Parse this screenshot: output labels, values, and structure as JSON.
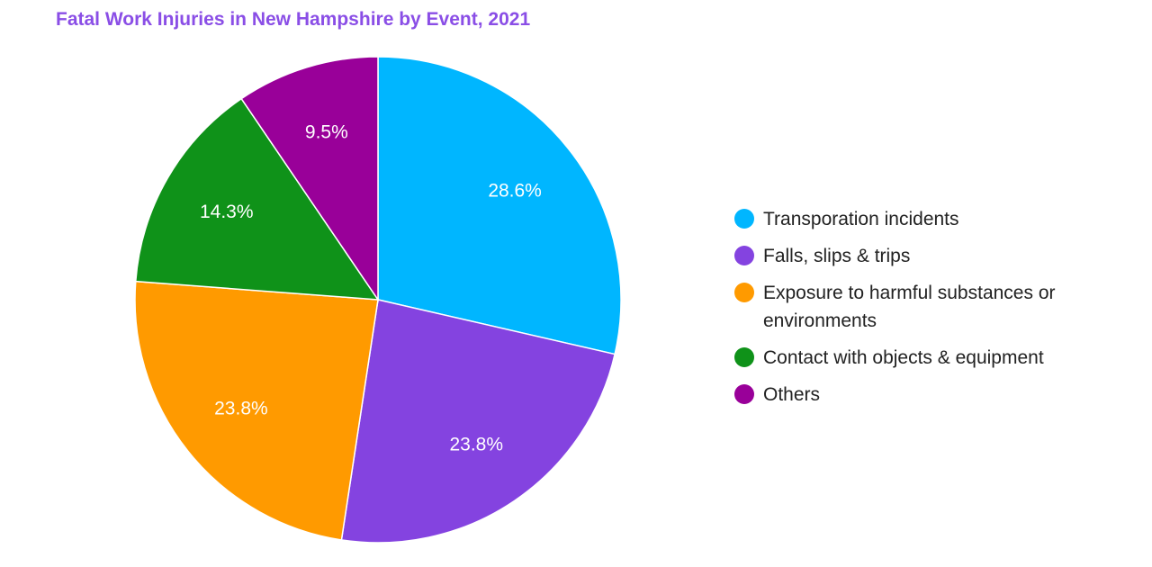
{
  "chart_data": {
    "type": "pie",
    "title": "Fatal Work Injuries in New Hampshire by Event, 2021",
    "legend_position": "right",
    "slices": [
      {
        "label": "Transporation incidents",
        "value": 28.6,
        "display": "28.6%",
        "color": "#00b6ff"
      },
      {
        "label": "Falls, slips & trips",
        "value": 23.8,
        "display": "23.8%",
        "color": "#8443e0"
      },
      {
        "label": "Exposure to harmful substances or environments",
        "value": 23.8,
        "display": "23.8%",
        "color": "#ff9a00"
      },
      {
        "label": "Contact with objects & equipment",
        "value": 14.3,
        "display": "14.3%",
        "color": "#0f9219"
      },
      {
        "label": "Others",
        "value": 9.5,
        "display": "9.5%",
        "color": "#990099"
      }
    ]
  }
}
